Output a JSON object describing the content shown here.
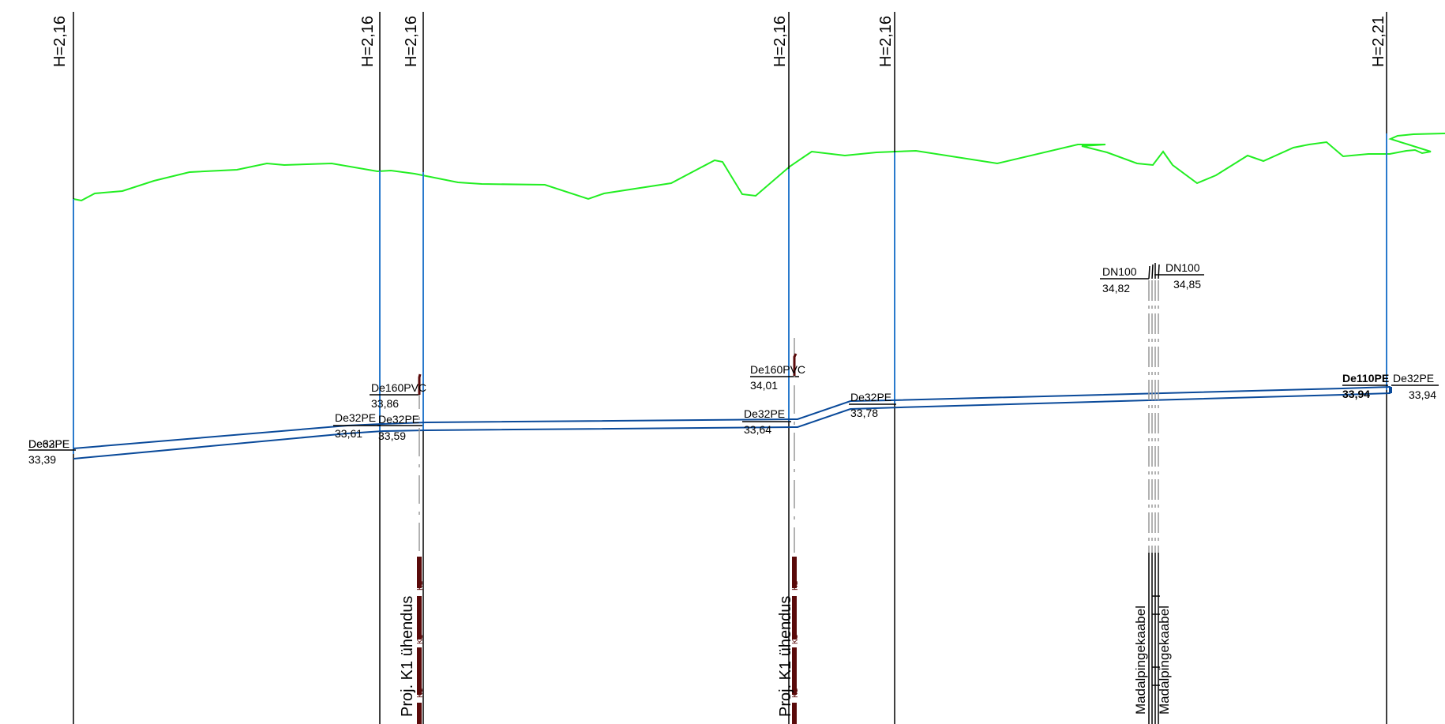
{
  "stations": [
    {
      "id": "s1",
      "height_label": "H=2,16"
    },
    {
      "id": "s2",
      "height_label": "H=2,16"
    },
    {
      "id": "s3",
      "height_label": "H=2,16"
    },
    {
      "id": "s4",
      "height_label": "H=2,16"
    },
    {
      "id": "s5",
      "height_label": "H=2,16"
    },
    {
      "id": "s6",
      "height_label": "H=2,21"
    }
  ],
  "pipe_labels": [
    {
      "id": "p1",
      "type": "De32PE",
      "overlap_type": "De63PE",
      "level": "33,39"
    },
    {
      "id": "p2",
      "type": "De32PE",
      "level": "33,61"
    },
    {
      "id": "p3",
      "type": "De32PE",
      "level": "33,59"
    },
    {
      "id": "p4",
      "type": "De160PVC",
      "level": "33,86"
    },
    {
      "id": "p5",
      "type": "De160PVC",
      "level": "34,01"
    },
    {
      "id": "p6",
      "type": "De32PE",
      "level": "33,64"
    },
    {
      "id": "p7",
      "type": "De32PE",
      "level": "33,78"
    },
    {
      "id": "p8",
      "type": "De110PE",
      "level": "33,94"
    },
    {
      "id": "p9",
      "type": "De32PE",
      "level": "33,94"
    },
    {
      "id": "p10",
      "type": "DN100",
      "level": "34,82"
    },
    {
      "id": "p11",
      "type": "DN100",
      "level": "34,85"
    }
  ],
  "crossing_labels": [
    {
      "id": "c1",
      "text": "Proj. K1 ühendus"
    },
    {
      "id": "c2",
      "text": "Proj. K1 ühendus"
    },
    {
      "id": "c3",
      "text": "Madalpingekaabel"
    },
    {
      "id": "c4",
      "text": "Madalpingekaabel"
    }
  ],
  "cable_tag": "K1",
  "colors": {
    "ground": "#22ee22",
    "pipe": "#0a4a9a",
    "riser": "#2a7acc",
    "station": "#000000",
    "cable": "#5a0a0a",
    "power": "#999999"
  }
}
